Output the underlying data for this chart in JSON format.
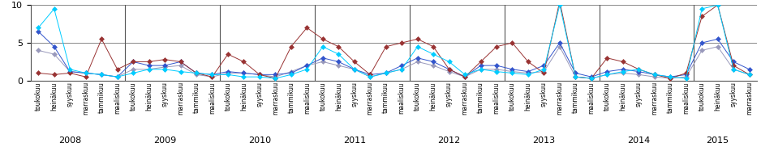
{
  "tick_labels_fi": [
    "toukokuu",
    "heinäkuu",
    "syyskuu",
    "marraskuu",
    "tammikuu",
    "maaliskuu",
    "toukokuu",
    "heinäkuu",
    "syyskuu",
    "marraskuu",
    "tammikuu",
    "maaliskuu",
    "toukokuu",
    "heinäkuu",
    "syyskuu",
    "marraskuu",
    "tammikuu",
    "maaliskuu",
    "toukokuu",
    "heinäkuu",
    "syyskuu",
    "marraskuu",
    "tammikuu",
    "maaliskuu",
    "toukokuu",
    "heinäkuu",
    "syyskuu",
    "marraskuu",
    "tammikuu",
    "maaliskuu",
    "toukokuu",
    "heinäkuu",
    "syyskuu",
    "marraskuu",
    "tammikuu",
    "maaliskuu",
    "toukokuu",
    "heinäkuu",
    "syyskuu",
    "marraskuu",
    "tammikuu",
    "maaliskuu",
    "toukokuu",
    "heinäkuu",
    "syyskuu",
    "marraskuu"
  ],
  "series_cyan": [
    7.0,
    9.5,
    1.5,
    1.0,
    0.8,
    0.5,
    1.0,
    1.5,
    1.5,
    1.2,
    1.0,
    0.8,
    0.8,
    0.5,
    0.5,
    0.3,
    0.8,
    1.5,
    4.5,
    3.5,
    1.5,
    0.5,
    1.0,
    1.5,
    4.5,
    3.5,
    2.5,
    0.8,
    1.5,
    1.2,
    1.0,
    0.8,
    1.5,
    10.0,
    0.5,
    0.3,
    0.8,
    1.2,
    1.5,
    0.8,
    0.5,
    0.3,
    9.5,
    10.0,
    1.5,
    0.8
  ],
  "series_blue": [
    6.5,
    4.5,
    1.2,
    1.0,
    0.8,
    0.5,
    2.5,
    2.0,
    2.0,
    2.5,
    1.0,
    0.8,
    1.2,
    1.0,
    0.8,
    0.8,
    1.0,
    2.0,
    3.0,
    2.5,
    1.5,
    0.8,
    1.0,
    2.0,
    3.0,
    2.5,
    1.5,
    0.5,
    2.0,
    2.0,
    1.5,
    1.2,
    2.0,
    5.0,
    1.0,
    0.5,
    1.2,
    1.5,
    1.2,
    0.8,
    0.5,
    0.8,
    5.0,
    5.5,
    2.5,
    1.5
  ],
  "series_darkred": [
    1.0,
    0.8,
    1.0,
    0.5,
    5.5,
    1.5,
    2.5,
    2.5,
    2.8,
    2.5,
    1.0,
    0.5,
    3.5,
    2.5,
    0.8,
    0.3,
    4.5,
    7.0,
    5.5,
    4.5,
    2.5,
    0.8,
    4.5,
    5.0,
    5.5,
    4.5,
    1.5,
    0.5,
    2.5,
    4.5,
    5.0,
    2.5,
    1.0,
    10.5,
    0.5,
    0.3,
    3.0,
    2.5,
    1.5,
    0.8,
    0.3,
    1.0,
    8.5,
    10.0,
    2.0,
    0.8
  ],
  "series_gray": [
    4.0,
    3.5,
    1.2,
    1.0,
    0.8,
    0.5,
    1.5,
    1.5,
    1.8,
    2.0,
    0.8,
    0.5,
    1.0,
    1.0,
    0.8,
    0.5,
    1.2,
    2.0,
    2.5,
    2.0,
    1.5,
    0.5,
    1.0,
    1.5,
    2.5,
    2.0,
    1.2,
    0.5,
    1.5,
    1.5,
    1.2,
    1.0,
    1.2,
    4.5,
    0.5,
    0.3,
    0.8,
    1.0,
    0.8,
    0.5,
    0.3,
    0.5,
    4.0,
    4.5,
    1.5,
    0.8
  ],
  "year_labels": {
    "2008": 2.0,
    "2009": 8.0,
    "2010": 14.0,
    "2011": 20.0,
    "2012": 26.0,
    "2013": 32.0,
    "2014": 38.0,
    "2015": 43.0
  },
  "vline_positions": [
    -0.5,
    5.5,
    11.5,
    17.5,
    23.5,
    29.5,
    35.5,
    41.5
  ],
  "ylim": [
    0,
    10
  ],
  "yticks": [
    0,
    5,
    10
  ],
  "background_color": "#ffffff",
  "grid_color": "#888888"
}
